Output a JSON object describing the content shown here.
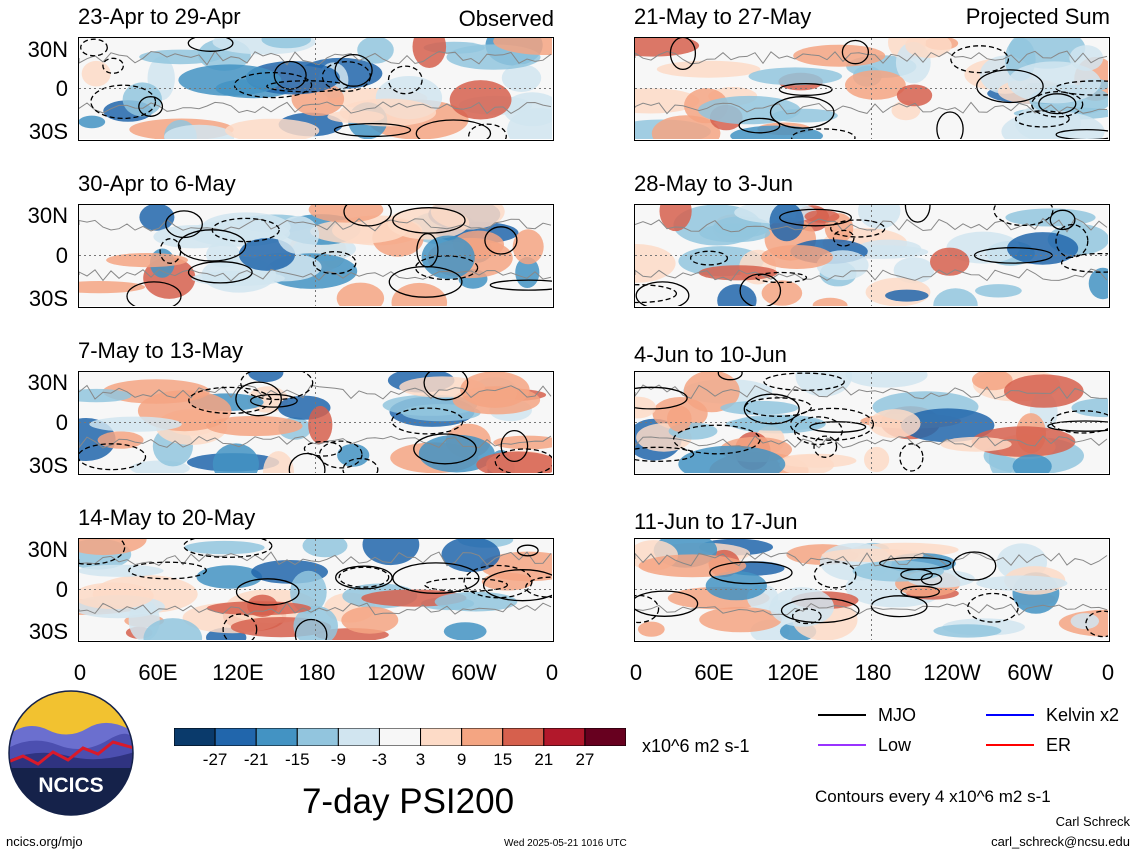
{
  "chart_data": {
    "type": "heatmap",
    "title": "7-day PSI200",
    "colorbar": {
      "unit_label": "x10^6 m2 s-1",
      "ticks": [
        "-27",
        "-21",
        "-15",
        "-9",
        "-3",
        "3",
        "9",
        "15",
        "21",
        "27"
      ],
      "colors": [
        "#0a3a6b",
        "#2166ac",
        "#4393c3",
        "#92c5de",
        "#d1e5f0",
        "#f7f7f7",
        "#fddbc7",
        "#f4a582",
        "#d6604d",
        "#b2182b",
        "#67001f"
      ]
    },
    "x_tick_labels": [
      "0",
      "60E",
      "120E",
      "180",
      "120W",
      "60W",
      "0"
    ],
    "y_tick_labels": [
      "30N",
      "0",
      "30S"
    ],
    "column_headers": {
      "left": "Observed",
      "right": "Projected Sum"
    },
    "panels_left": [
      {
        "label": "23-Apr to 29-Apr"
      },
      {
        "label": "30-Apr to 6-May"
      },
      {
        "label": "7-May to 13-May"
      },
      {
        "label": "14-May to 20-May"
      }
    ],
    "panels_right": [
      {
        "label": "21-May to 27-May"
      },
      {
        "label": "28-May to 3-Jun"
      },
      {
        "label": "4-Jun to 10-Jun"
      },
      {
        "label": "11-Jun to 17-Jun"
      }
    ],
    "contour_legend": [
      {
        "label": "MJO",
        "color": "#000000"
      },
      {
        "label": "Kelvin x2",
        "color": "#0000ff"
      },
      {
        "label": "Low",
        "color": "#9933ff"
      },
      {
        "label": "ER",
        "color": "#ff0000"
      }
    ],
    "contour_note": "Contours every 4 x10^6 m2 s-1"
  },
  "logo_text": "NCICS",
  "footer": {
    "left": "ncics.org/mjo",
    "center": "Wed 2025-05-21 1016 UTC",
    "author": "Carl Schreck",
    "email": "carl_schreck@ncsu.edu"
  }
}
